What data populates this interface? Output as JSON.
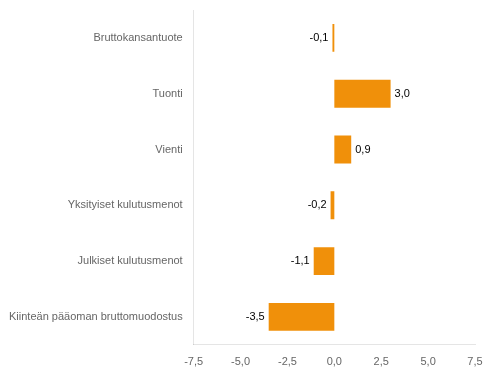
{
  "chart_data": {
    "type": "bar",
    "orientation": "horizontal",
    "categories": [
      "Kiinteän pääoman bruttomuodostus",
      "Julkiset kulutusmenot",
      "Yksityiset kulutusmenot",
      "Vienti",
      "Tuonti",
      "Bruttokansantuote"
    ],
    "values": [
      -3.5,
      -1.1,
      -0.2,
      0.9,
      3.0,
      -0.1
    ],
    "value_labels": [
      "-3,5",
      "-1,1",
      "-0,2",
      "0,9",
      "3,0",
      "-0,1"
    ],
    "color": "#F0900A",
    "xlim": [
      -7.5,
      7.5
    ],
    "xticks": [
      {
        "value": -7.5,
        "label": "-7,5"
      },
      {
        "value": -5.0,
        "label": "-5,0"
      },
      {
        "value": -2.5,
        "label": "-2,5"
      },
      {
        "value": 0.0,
        "label": "0,0"
      },
      {
        "value": 2.5,
        "label": "2,5"
      },
      {
        "value": 5.0,
        "label": "5,0"
      },
      {
        "value": 7.5,
        "label": "7,5"
      }
    ],
    "grid": false,
    "data_labels": true
  }
}
